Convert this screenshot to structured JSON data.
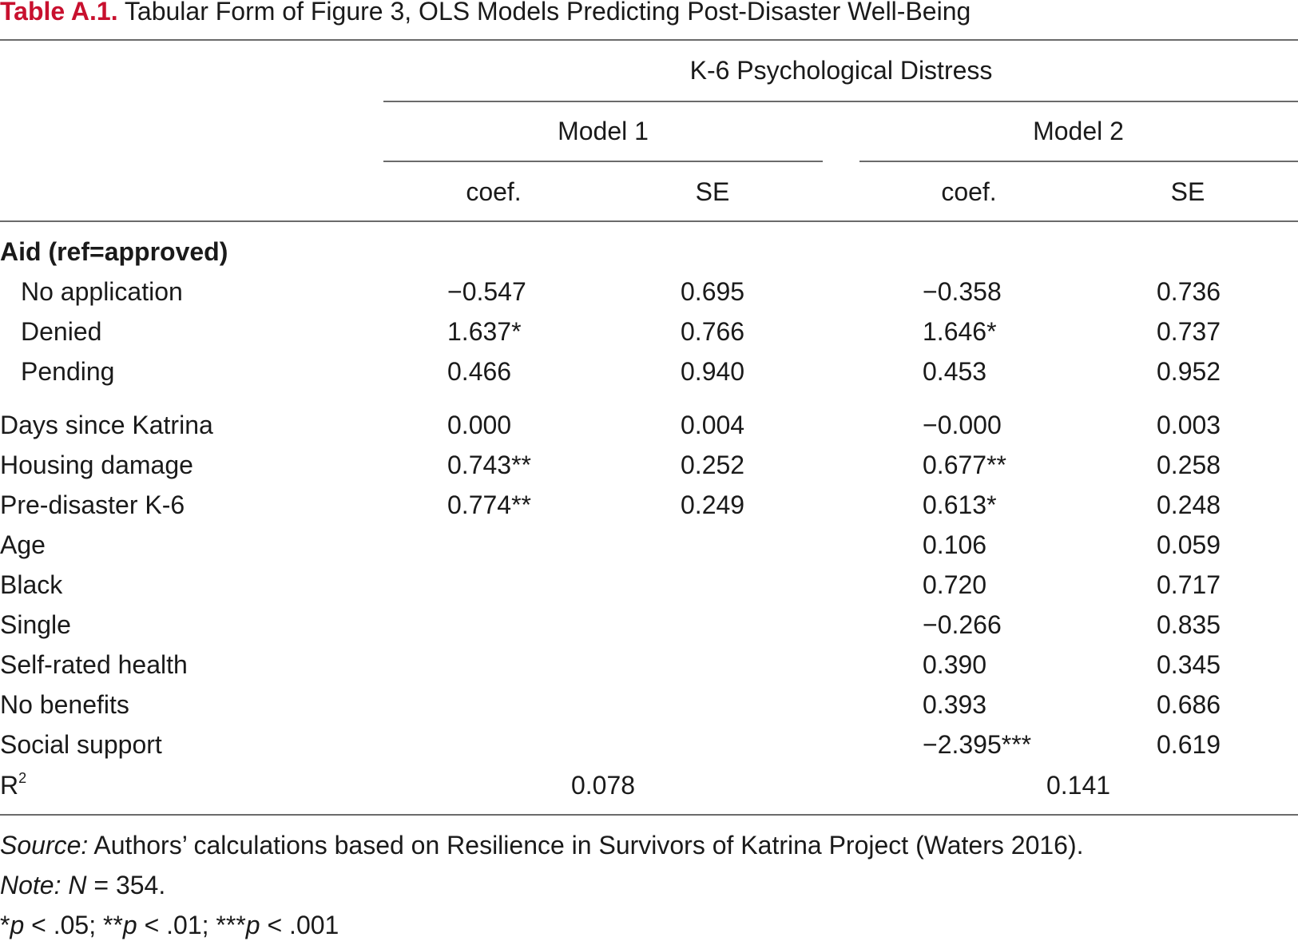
{
  "title": {
    "label": "Table A.1.",
    "text": "Tabular Form of Figure 3, OLS Models Predicting Post-Disaster Well-Being"
  },
  "header": {
    "spanner": "K-6 Psychological Distress",
    "model1": "Model 1",
    "model2": "Model 2",
    "coef": "coef.",
    "se": "SE"
  },
  "section": {
    "label": "Aid (ref=approved)"
  },
  "rows": [
    {
      "label": "No application",
      "m1_coef": "−0.547",
      "m1_se": "0.695",
      "m2_coef": "−0.358",
      "m2_se": "0.736"
    },
    {
      "label": "Denied",
      "m1_coef": "1.637*",
      "m1_se": "0.766",
      "m2_coef": "1.646*",
      "m2_se": "0.737"
    },
    {
      "label": "Pending",
      "m1_coef": "0.466",
      "m1_se": "0.940",
      "m2_coef": "0.453",
      "m2_se": "0.952"
    },
    {
      "label": "Days since Katrina",
      "m1_coef": "0.000",
      "m1_se": "0.004",
      "m2_coef": "−0.000",
      "m2_se": "0.003"
    },
    {
      "label": "Housing damage",
      "m1_coef": "0.743**",
      "m1_se": "0.252",
      "m2_coef": "0.677**",
      "m2_se": "0.258"
    },
    {
      "label": "Pre-disaster K-6",
      "m1_coef": "0.774**",
      "m1_se": "0.249",
      "m2_coef": "0.613*",
      "m2_se": "0.248"
    },
    {
      "label": "Age",
      "m1_coef": "",
      "m1_se": "",
      "m2_coef": "0.106",
      "m2_se": "0.059"
    },
    {
      "label": "Black",
      "m1_coef": "",
      "m1_se": "",
      "m2_coef": "0.720",
      "m2_se": "0.717"
    },
    {
      "label": "Single",
      "m1_coef": "",
      "m1_se": "",
      "m2_coef": "−0.266",
      "m2_se": "0.835"
    },
    {
      "label": "Self-rated health",
      "m1_coef": "",
      "m1_se": "",
      "m2_coef": "0.390",
      "m2_se": "0.345"
    },
    {
      "label": "No benefits",
      "m1_coef": "",
      "m1_se": "",
      "m2_coef": "0.393",
      "m2_se": "0.686"
    },
    {
      "label": "Social support",
      "m1_coef": "",
      "m1_se": "",
      "m2_coef": "−2.395***",
      "m2_se": "0.619"
    }
  ],
  "r2": {
    "label": "R",
    "sup": "2",
    "m1": "0.078",
    "m2": "0.141"
  },
  "footnotes": {
    "source_label": "Source:",
    "source_text": " Authors’ calculations based on Resilience in Survivors of Katrina Project (Waters 2016).",
    "note_label": "Note:",
    "note_n": "N",
    "note_text": " = 354.",
    "sig": [
      {
        "stars": "*",
        "p": "p",
        "text": " < .05; "
      },
      {
        "stars": "**",
        "p": "p",
        "text": " < .01; "
      },
      {
        "stars": "***",
        "p": "p",
        "text": " < .001"
      }
    ]
  },
  "colors": {
    "accent": "#c8102e",
    "rule": "#6b6b6b",
    "text": "#1a1a1a"
  }
}
